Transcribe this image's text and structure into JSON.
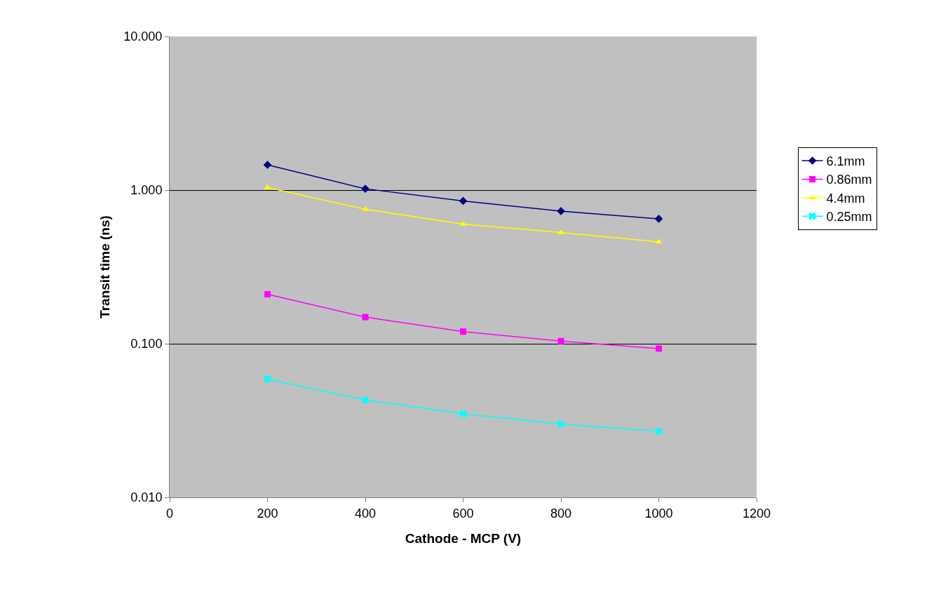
{
  "chart_data": {
    "type": "line",
    "xlabel": "Cathode - MCP (V)",
    "ylabel": "Transit time (ns)",
    "log": "y",
    "grid": "y",
    "legend": "right",
    "line_style": "solid",
    "x": [
      200,
      400,
      600,
      800,
      1000
    ],
    "xlim": [
      0,
      1200
    ],
    "xticks": [
      0,
      200,
      400,
      600,
      800,
      1000,
      1200
    ],
    "ylim": [
      0.01,
      10
    ],
    "yticks": [
      {
        "value": 0.01,
        "label": "0.010"
      },
      {
        "value": 0.1,
        "label": "0.100"
      },
      {
        "value": 1,
        "label": "1.000"
      },
      {
        "value": 10,
        "label": "10.000"
      }
    ],
    "series": [
      {
        "name": "6.1mm",
        "color": "#000080",
        "marker": "diamond",
        "values": [
          1.46,
          1.02,
          0.85,
          0.73,
          0.65
        ]
      },
      {
        "name": "0.86mm",
        "color": "#ff00ff",
        "marker": "square",
        "values": [
          0.21,
          0.149,
          0.12,
          0.104,
          0.093
        ]
      },
      {
        "name": "4.4mm",
        "color": "#ffff00",
        "marker": "triangle",
        "values": [
          1.04,
          0.75,
          0.6,
          0.53,
          0.46
        ]
      },
      {
        "name": "0.25mm",
        "color": "#00ffff",
        "marker": "cross",
        "values": [
          0.059,
          0.043,
          0.035,
          0.03,
          0.027
        ]
      }
    ]
  }
}
